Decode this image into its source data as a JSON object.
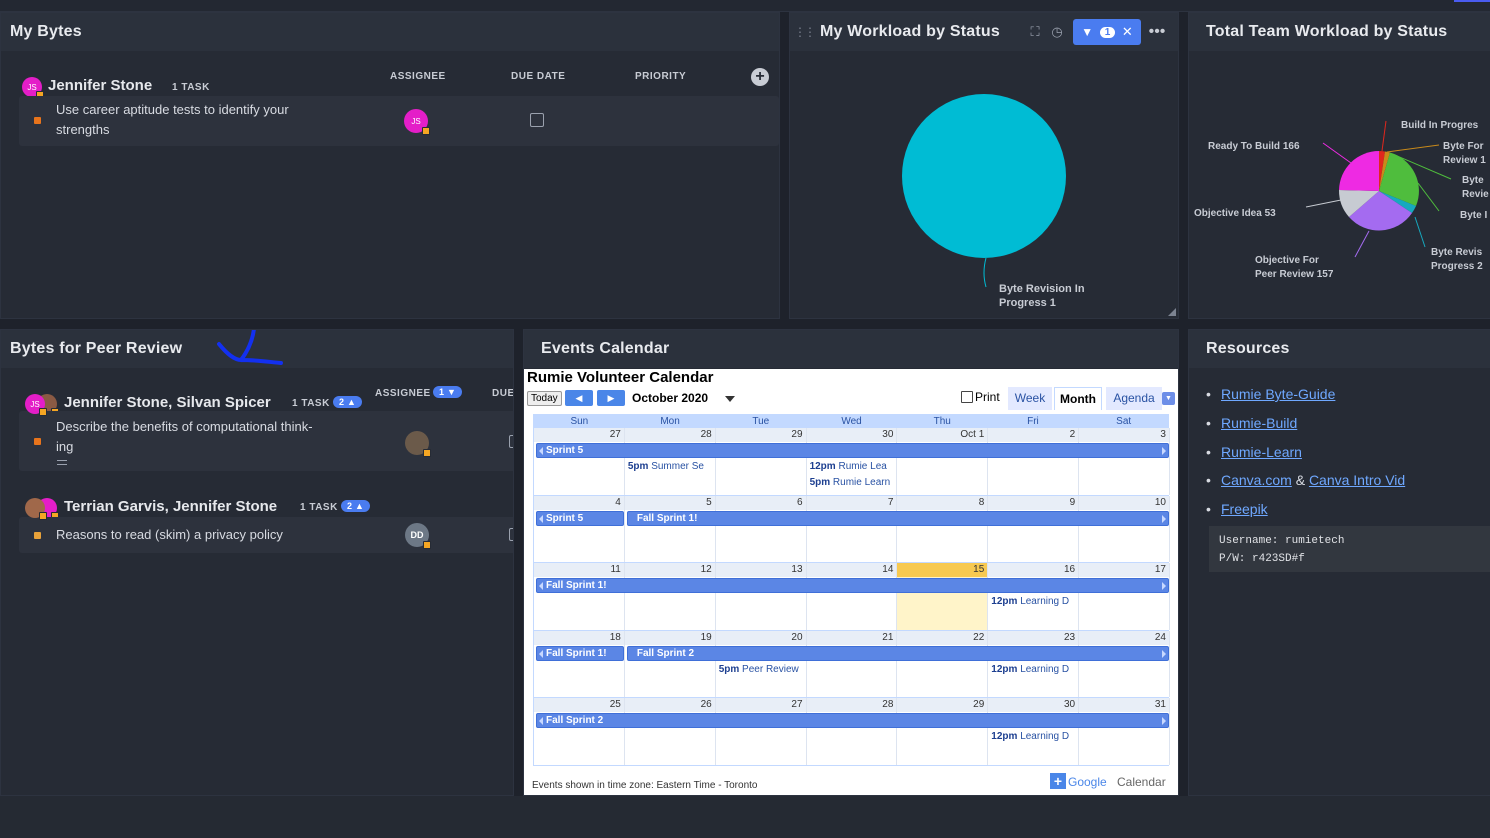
{
  "my_bytes": {
    "title": "My Bytes",
    "group_name": "Jennifer Stone",
    "task_count": "1 TASK",
    "col_assignee": "ASSIGNEE",
    "col_due": "DUE DATE",
    "col_priority": "PRIORITY",
    "avatar_initials": "JS",
    "task_line1": "Use career aptitude tests to identify your",
    "task_line2": "strengths",
    "task_avatar": "JS"
  },
  "workload": {
    "title": "My Workload by Status",
    "filter_count": "1",
    "slice_label_1": "Byte Revision In",
    "slice_label_2": "Progress 1"
  },
  "team_workload": {
    "title": "Total Team Workload by Status",
    "labels": {
      "build_in_progress": "Build In Progres",
      "byte_for_review_1": "Byte For",
      "byte_for_review_2": "Review 1",
      "byte_rev_1": "Byte",
      "byte_rev_2": "Revie",
      "byte_x": "Byte I",
      "ready_to_build": "Ready To Build 166",
      "objective_idea": "Objective Idea 53",
      "objective_peer_1": "Objective For",
      "objective_peer_2": "Peer Review 157",
      "byte_revision_1": "Byte Revis",
      "byte_revision_2": "Progress 2"
    }
  },
  "peer_review": {
    "title": "Bytes for Peer Review",
    "col_assignee": "ASSIGNEE",
    "assignee_count": "1",
    "col_due": "DUE",
    "groups": [
      {
        "name": "Jennifer Stone, Silvan Spicer",
        "task_count": "1 TASK",
        "pill": "2",
        "task_line1": "Describe the benefits of computational think-",
        "task_line2": "ing"
      },
      {
        "name": "Terrian Garvis, Jennifer Stone",
        "task_count": "1 TASK",
        "pill": "2",
        "task_line1": "Reasons to read (skim) a privacy policy",
        "task_avatar": "DD"
      }
    ]
  },
  "events": {
    "title": "Events Calendar",
    "cal_title": "Rumie Volunteer Calendar",
    "today": "Today",
    "month_label": "October 2020",
    "print": "Print",
    "tab_week": "Week",
    "tab_month": "Month",
    "tab_agenda": "Agenda",
    "dow": [
      "Sun",
      "Mon",
      "Tue",
      "Wed",
      "Thu",
      "Fri",
      "Sat"
    ],
    "weeks": [
      [
        "27",
        "28",
        "29",
        "30",
        "Oct 1",
        "2",
        "3"
      ],
      [
        "4",
        "5",
        "6",
        "7",
        "8",
        "9",
        "10"
      ],
      [
        "11",
        "12",
        "13",
        "14",
        "15",
        "16",
        "17"
      ],
      [
        "18",
        "19",
        "20",
        "21",
        "22",
        "23",
        "24"
      ],
      [
        "25",
        "26",
        "27",
        "28",
        "29",
        "30",
        "31"
      ]
    ],
    "bars": {
      "w1_sprint5": "Sprint 5",
      "w2_sprint5": "Sprint 5",
      "w2_fall1": "Fall Sprint 1!",
      "w3_fall1": "Fall Sprint 1!",
      "w4_fall1": "Fall Sprint 1!",
      "w4_fall2": "Fall Sprint 2",
      "w5_fall2": "Fall Sprint 2"
    },
    "events": {
      "w1_mon_time": "5pm",
      "w1_mon_text": "Summer Se",
      "w1_wed1_time": "12pm",
      "w1_wed1_text": "Rumie Lea",
      "w1_wed2_time": "5pm",
      "w1_wed2_text": "Rumie Learn",
      "w3_fri_time": "12pm",
      "w3_fri_text": "Learning D",
      "w4_tue_time": "5pm",
      "w4_tue_text": "Peer Review",
      "w4_fri_time": "12pm",
      "w4_fri_text": "Learning D",
      "w5_fri_time": "12pm",
      "w5_fri_text": "Learning D"
    },
    "footer_tz": "Events shown in time zone: Eastern Time - Toronto",
    "footer_brand_g": "Google",
    "footer_brand_c": "Calendar"
  },
  "resources": {
    "title": "Resources",
    "links": [
      "Rumie Byte-Guide",
      "Rumie-Build ",
      "Rumie-Learn"
    ],
    "canva": "Canva.com",
    "amp": "&",
    "canva_intro": "Canva Intro Vid",
    "freepik": "Freepik",
    "username": "Username: rumietech",
    "password": "P/W: r423SD#f"
  },
  "colors": {
    "accent": "#4a7cf0",
    "teal": "#00bcd4",
    "dark_bg": "#1e222b",
    "card_bg": "#262b35"
  }
}
